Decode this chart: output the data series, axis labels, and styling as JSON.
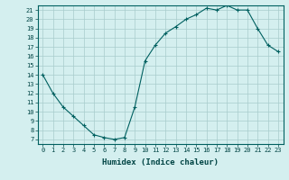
{
  "x": [
    0,
    1,
    2,
    3,
    4,
    5,
    6,
    7,
    8,
    9,
    10,
    11,
    12,
    13,
    14,
    15,
    16,
    17,
    18,
    19,
    20,
    21,
    22,
    23
  ],
  "y": [
    14,
    12,
    10.5,
    9.5,
    8.5,
    7.5,
    7.2,
    7.0,
    7.2,
    10.5,
    15.5,
    17.2,
    18.5,
    19.2,
    20.0,
    20.5,
    21.2,
    21.0,
    21.5,
    21.0,
    21.0,
    19.0,
    17.2,
    16.5
  ],
  "xlabel": "Humidex (Indice chaleur)",
  "line_color": "#006060",
  "marker": "+",
  "marker_size": 3,
  "marker_linewidth": 0.8,
  "bg_color": "#d4efef",
  "grid_color": "#a8cccc",
  "xlim": [
    -0.5,
    23.5
  ],
  "ylim": [
    6.5,
    21.5
  ],
  "yticks": [
    7,
    8,
    9,
    10,
    11,
    12,
    13,
    14,
    15,
    16,
    17,
    18,
    19,
    20,
    21
  ],
  "xticks": [
    0,
    1,
    2,
    3,
    4,
    5,
    6,
    7,
    8,
    9,
    10,
    11,
    12,
    13,
    14,
    15,
    16,
    17,
    18,
    19,
    20,
    21,
    22,
    23
  ],
  "tick_fontsize": 5,
  "xlabel_fontsize": 6.5,
  "linewidth": 0.8
}
